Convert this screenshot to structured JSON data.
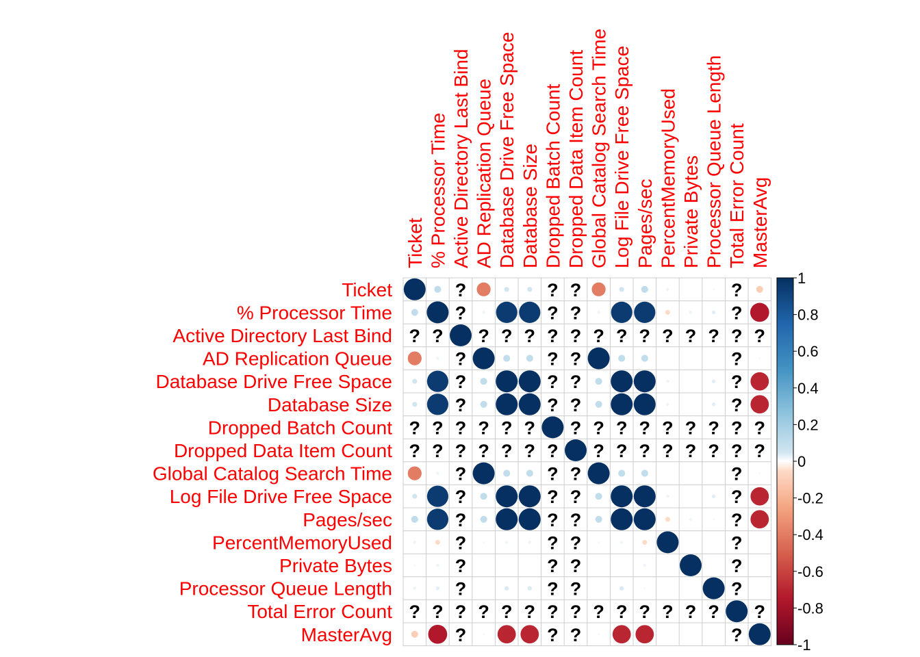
{
  "chart_data": {
    "type": "heatmap",
    "variables": [
      "Ticket",
      "% Processor Time",
      "Active Directory Last Bind",
      "AD Replication Queue",
      "Database Drive Free Space",
      "Database Size",
      "Dropped Batch Count",
      "Dropped Data Item Count",
      "Global Catalog Search Time",
      "Log File Drive Free Space",
      "Pages/sec",
      "PercentMemoryUsed",
      "Private Bytes",
      "Processor Queue Length",
      "Total Error Count",
      "MasterAvg"
    ],
    "missing_symbol": "?",
    "matrix": [
      [
        1,
        0.1,
        null,
        -0.4,
        0.05,
        0.05,
        null,
        null,
        -0.4,
        0.05,
        0.1,
        0.02,
        0,
        0.01,
        null,
        -0.1
      ],
      [
        0.1,
        1,
        null,
        0.02,
        0.95,
        0.95,
        null,
        null,
        0.02,
        0.95,
        0.95,
        -0.05,
        0.02,
        0.03,
        null,
        -0.75
      ],
      [
        null,
        null,
        1,
        null,
        null,
        null,
        null,
        null,
        null,
        null,
        null,
        null,
        null,
        null,
        null,
        null
      ],
      [
        -0.4,
        0.02,
        null,
        1,
        0.1,
        0.1,
        null,
        null,
        1,
        0.1,
        0.1,
        0,
        0,
        0,
        null,
        0.01
      ],
      [
        0.05,
        0.95,
        null,
        0.1,
        1,
        1,
        null,
        null,
        0.1,
        1,
        1,
        0.02,
        0,
        0.03,
        null,
        -0.7
      ],
      [
        0.05,
        0.95,
        null,
        0.1,
        1,
        1,
        null,
        null,
        0.1,
        1,
        1,
        0.02,
        0,
        0.03,
        null,
        -0.7
      ],
      [
        null,
        null,
        null,
        null,
        null,
        null,
        1,
        null,
        null,
        null,
        null,
        null,
        null,
        null,
        null,
        null
      ],
      [
        null,
        null,
        null,
        null,
        null,
        null,
        null,
        1,
        null,
        null,
        null,
        null,
        null,
        null,
        null,
        null
      ],
      [
        -0.4,
        0.02,
        null,
        1,
        0.1,
        0.1,
        null,
        null,
        1,
        0.1,
        0.1,
        0,
        0,
        0,
        null,
        0.01
      ],
      [
        0.05,
        0.95,
        null,
        0.1,
        1,
        1,
        null,
        null,
        0.1,
        1,
        1,
        0.02,
        0,
        0.03,
        null,
        -0.7
      ],
      [
        0.1,
        0.95,
        null,
        0.1,
        1,
        1,
        null,
        null,
        0.1,
        1,
        1,
        -0.05,
        0.02,
        0.01,
        null,
        -0.7
      ],
      [
        0.02,
        -0.05,
        null,
        0.01,
        0.02,
        0.02,
        null,
        null,
        0.01,
        0.02,
        -0.05,
        1,
        0,
        0,
        null,
        0
      ],
      [
        0.01,
        0.02,
        null,
        0,
        0,
        0,
        null,
        null,
        0,
        0,
        0.02,
        0,
        1,
        0,
        null,
        0
      ],
      [
        0.02,
        0.03,
        null,
        0,
        0.04,
        0.04,
        null,
        null,
        0,
        0.04,
        0.01,
        0,
        0,
        1,
        null,
        0
      ],
      [
        null,
        null,
        null,
        null,
        null,
        null,
        null,
        null,
        null,
        null,
        null,
        null,
        null,
        null,
        1,
        null
      ],
      [
        -0.1,
        -0.75,
        null,
        0.01,
        -0.7,
        -0.7,
        null,
        null,
        0.01,
        -0.7,
        -0.7,
        0,
        0,
        0,
        null,
        1
      ]
    ],
    "colorbar": {
      "range": [
        -1,
        1
      ],
      "ticks": [
        "1",
        "0.8",
        "0.6",
        "0.4",
        "0.2",
        "0",
        "-0.2",
        "-0.4",
        "-0.6",
        "-0.8",
        "-1"
      ]
    },
    "colors": {
      "positive_strong": "#053061",
      "positive_mid": "#4393c3",
      "neutral": "#ffffff",
      "negative_mid": "#f4a582",
      "negative_strong": "#67001f",
      "grid": "#cccccc",
      "labels": "#ff0000"
    }
  }
}
